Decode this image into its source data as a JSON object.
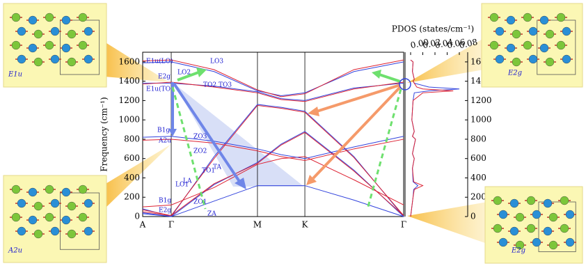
{
  "chart_data": [
    {
      "type": "line",
      "ylabel": "Frequency (cm⁻¹)",
      "xlim": [
        0,
        9.14
      ],
      "ylim": [
        0,
        1700
      ],
      "xticks": [
        {
          "value": 0,
          "label": "A"
        },
        {
          "value": 1,
          "label": "Γ"
        },
        {
          "value": 4.02,
          "label": "M"
        },
        {
          "value": 5.68,
          "label": "K"
        },
        {
          "value": 9.14,
          "label": "Γ"
        }
      ],
      "yticks": [
        0,
        200,
        400,
        600,
        800,
        1000,
        1200,
        1400,
        1600
      ],
      "x": [
        0,
        1,
        2.5,
        4.02,
        4.85,
        5.68,
        7.4,
        9.14
      ],
      "series": [
        {
          "color": "#3344dd",
          "values": [
            1590,
            1600,
            1500,
            1300,
            1250,
            1280,
            1500,
            1600
          ]
        },
        {
          "color": "#dd2233",
          "values": [
            1610,
            1620,
            1520,
            1310,
            1240,
            1270,
            1520,
            1620
          ]
        },
        {
          "color": "#3344dd",
          "values": [
            1380,
            1380,
            1350,
            1290,
            1220,
            1200,
            1330,
            1380
          ]
        },
        {
          "color": "#dd2233",
          "values": [
            1370,
            1390,
            1340,
            1280,
            1210,
            1190,
            1320,
            1390
          ]
        },
        {
          "color": "#3344dd",
          "values": [
            80,
            0,
            620,
            1160,
            1130,
            1090,
            620,
            0
          ]
        },
        {
          "color": "#dd2233",
          "values": [
            70,
            10,
            600,
            1150,
            1120,
            1080,
            610,
            10
          ]
        },
        {
          "color": "#3344dd",
          "values": [
            40,
            0,
            330,
            560,
            750,
            880,
            480,
            0
          ]
        },
        {
          "color": "#dd2233",
          "values": [
            50,
            10,
            340,
            550,
            740,
            870,
            470,
            10
          ]
        },
        {
          "color": "#3344dd",
          "values": [
            30,
            0,
            160,
            320,
            320,
            320,
            170,
            0
          ]
        },
        {
          "color": "#dd2233",
          "values": [
            100,
            120,
            300,
            540,
            600,
            620,
            380,
            120
          ]
        },
        {
          "color": "#3344dd",
          "values": [
            820,
            830,
            780,
            700,
            640,
            600,
            720,
            830
          ]
        },
        {
          "color": "#dd2233",
          "values": [
            790,
            800,
            760,
            680,
            620,
            580,
            700,
            800
          ]
        }
      ],
      "annotations": [
        "E1u(LO)",
        "LO3",
        "E2g",
        "LO2",
        "TO2 TO3",
        "E1u(TO)",
        "B1g",
        "A2u",
        "ZO3",
        "ZO2",
        "TA",
        "TO1",
        "LA",
        "LO1",
        "B1g",
        "E2g",
        "ZO1",
        "ZA"
      ]
    },
    {
      "type": "pdos",
      "xlabel": "PDOS (states/cm⁻¹)",
      "xlim": [
        0,
        0.08
      ],
      "xticks": [
        {
          "value": 0,
          "label": "0.00"
        },
        {
          "value": 0.02,
          "label": "0.02"
        },
        {
          "value": 0.04,
          "label": "0.04"
        },
        {
          "value": 0.06,
          "label": "0.06"
        },
        {
          "value": 0.08,
          "label": "0.08"
        }
      ],
      "ylim": [
        0,
        1700
      ],
      "yticks": [
        0,
        200,
        400,
        600,
        800,
        1000,
        1200,
        1400,
        1600
      ],
      "y": [
        0,
        100,
        200,
        280,
        320,
        360,
        500,
        600,
        650,
        800,
        830,
        880,
        1000,
        1100,
        1200,
        1280,
        1300,
        1320,
        1340,
        1380,
        1400,
        1420,
        1500,
        1600,
        1620
      ],
      "series": [
        {
          "color": "#3344dd",
          "values": [
            0,
            0.002,
            0.004,
            0.005,
            0.012,
            0.004,
            0.003,
            0.006,
            0.003,
            0.008,
            0.003,
            0.006,
            0.002,
            0.003,
            0.004,
            0.006,
            0.03,
            0.08,
            0.03,
            0.006,
            0.004,
            0.006,
            0.003,
            0.004,
            0
          ]
        },
        {
          "color": "#dd2233",
          "values": [
            0,
            0.002,
            0.004,
            0.006,
            0.02,
            0.005,
            0.003,
            0.006,
            0.003,
            0.008,
            0.003,
            0.006,
            0.002,
            0.003,
            0.004,
            0.02,
            0.07,
            0.02,
            0.01,
            0.006,
            0.004,
            0.006,
            0.003,
            0.004,
            0
          ]
        }
      ]
    }
  ],
  "insets": [
    {
      "label": "E1u"
    },
    {
      "label": "A2u"
    },
    {
      "label": "E2g"
    },
    {
      "label": "E2g"
    }
  ]
}
